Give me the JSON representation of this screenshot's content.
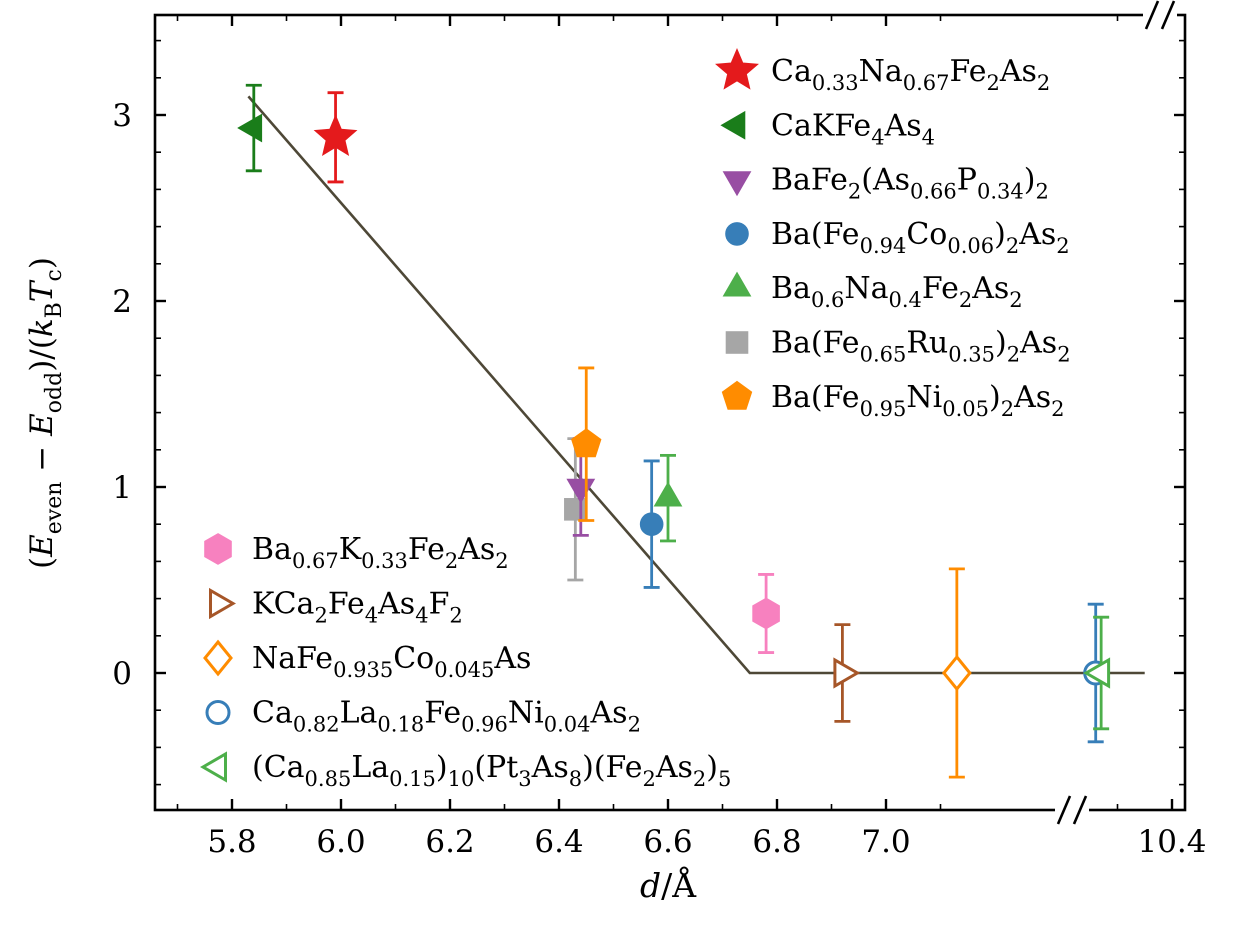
{
  "chart_data": {
    "type": "scatter",
    "title": "",
    "xlabel": "d/Å",
    "xlabel_markup": "*d*/Å",
    "ylabel": "(E_even − E_odd)/(k_B T_c)",
    "ylabel_markup": "(*E*_{even} − *E*_{odd})/(*k*_{B}*T*_{c})",
    "x_tick_values": [
      5.8,
      6.0,
      6.2,
      6.4,
      6.6,
      6.8,
      7.0,
      10.4
    ],
    "x_tick_labels": [
      "5.8",
      "6.0",
      "6.2",
      "6.4",
      "6.6",
      "6.8",
      "7.0",
      "10.4"
    ],
    "y_tick_values": [
      0,
      1,
      2,
      3
    ],
    "y_tick_labels": [
      "0",
      "1",
      "2",
      "3"
    ],
    "ylim": [
      -0.75,
      3.55
    ],
    "grid": false,
    "x_axis_break": {
      "between_ticks": [
        7.0,
        10.4
      ]
    },
    "legend_positions": [
      "upper-right",
      "lower-left"
    ],
    "fit_line": {
      "color": "#4e4837",
      "points_x": [
        5.83,
        6.75,
        10.35
      ],
      "points_y": [
        3.1,
        0,
        0
      ]
    },
    "series": [
      {
        "label": "Ca0.33Na0.67Fe2As2",
        "label_markup": "Ca_{0.33}Na_{0.67}Fe_{2}As_{2}",
        "marker": "star",
        "fill": "solid",
        "color": "#e41a1c",
        "legend": "upper-right",
        "x": 5.99,
        "y": 2.88,
        "yerr": 0.24
      },
      {
        "label": "CaKFe4As4",
        "label_markup": "CaKFe_{4}As_{4}",
        "marker": "triangle-left",
        "fill": "solid",
        "color": "#1a7d1a",
        "legend": "upper-right",
        "x": 5.84,
        "y": 2.93,
        "yerr": 0.23
      },
      {
        "label": "BaFe2(As0.66P0.34)2",
        "label_markup": "BaFe_{2}(As_{0.66}P_{0.34})_{2}",
        "marker": "triangle-down",
        "fill": "solid",
        "color": "#984ea3",
        "legend": "upper-right",
        "x": 6.44,
        "y": 1.0,
        "yerr": 0.26
      },
      {
        "label": "Ba(Fe0.94Co0.06)2As2",
        "label_markup": "Ba(Fe_{0.94}Co_{0.06})_{2}As_{2}",
        "marker": "circle",
        "fill": "solid",
        "color": "#377eb8",
        "legend": "upper-right",
        "x": 6.57,
        "y": 0.8,
        "yerr": 0.34
      },
      {
        "label": "Ba0.6Na0.4Fe2As2",
        "label_markup": "Ba_{0.6}Na_{0.4}Fe_{2}As_{2}",
        "marker": "triangle-up",
        "fill": "solid",
        "color": "#4daf4a",
        "legend": "upper-right",
        "x": 6.6,
        "y": 0.94,
        "yerr": 0.23
      },
      {
        "label": "Ba(Fe0.65Ru0.35)2As2",
        "label_markup": "Ba(Fe_{0.65}Ru_{0.35})_{2}As_{2}",
        "marker": "square",
        "fill": "solid",
        "color": "#a6a6a6",
        "legend": "upper-right",
        "x": 6.43,
        "y": 0.88,
        "yerr": 0.38
      },
      {
        "label": "Ba(Fe0.95Ni0.05)2As2",
        "label_markup": "Ba(Fe_{0.95}Ni_{0.05})_{2}As_{2}",
        "marker": "pentagon",
        "fill": "solid",
        "color": "#ff8c00",
        "legend": "upper-right",
        "x": 6.45,
        "y": 1.23,
        "yerr": 0.41
      },
      {
        "label": "Ba0.67K0.33Fe2As2",
        "label_markup": "Ba_{0.67}K_{0.33}Fe_{2}As_{2}",
        "marker": "hexagon",
        "fill": "solid",
        "color": "#f781bf",
        "legend": "lower-left",
        "x": 6.78,
        "y": 0.32,
        "yerr": 0.21
      },
      {
        "label": "KCa2Fe4As4F2",
        "label_markup": "KCa_{2}Fe_{4}As_{4}F_{2}",
        "marker": "triangle-right",
        "fill": "open",
        "color": "#a65628",
        "legend": "lower-left",
        "x": 6.92,
        "y": 0.0,
        "yerr": 0.26
      },
      {
        "label": "NaFe0.935Co0.045As",
        "label_markup": "NaFe_{0.935}Co_{0.045}As",
        "marker": "diamond",
        "fill": "open",
        "color": "#ff8c00",
        "legend": "lower-left",
        "x": 7.13,
        "y": 0.0,
        "yerr": 0.56
      },
      {
        "label": "Ca0.82La0.18Fe0.96Ni0.04As2",
        "label_markup": "Ca_{0.82}La_{0.18}Fe_{0.96}Ni_{0.04}As_{2}",
        "marker": "circle",
        "fill": "open",
        "color": "#377eb8",
        "legend": "lower-left",
        "x": 10.26,
        "y": 0.0,
        "yerr": 0.37
      },
      {
        "label": "(Ca0.85La0.15)10(Pt3As8)(Fe2As2)5",
        "label_markup": "(Ca_{0.85}La_{0.15})_{10}(Pt_{3}As_{8})(Fe_{2}As_{2})_{5}",
        "marker": "triangle-left",
        "fill": "open",
        "color": "#4daf4a",
        "legend": "lower-left",
        "x": 10.27,
        "y": 0.0,
        "yerr": 0.3
      }
    ]
  }
}
